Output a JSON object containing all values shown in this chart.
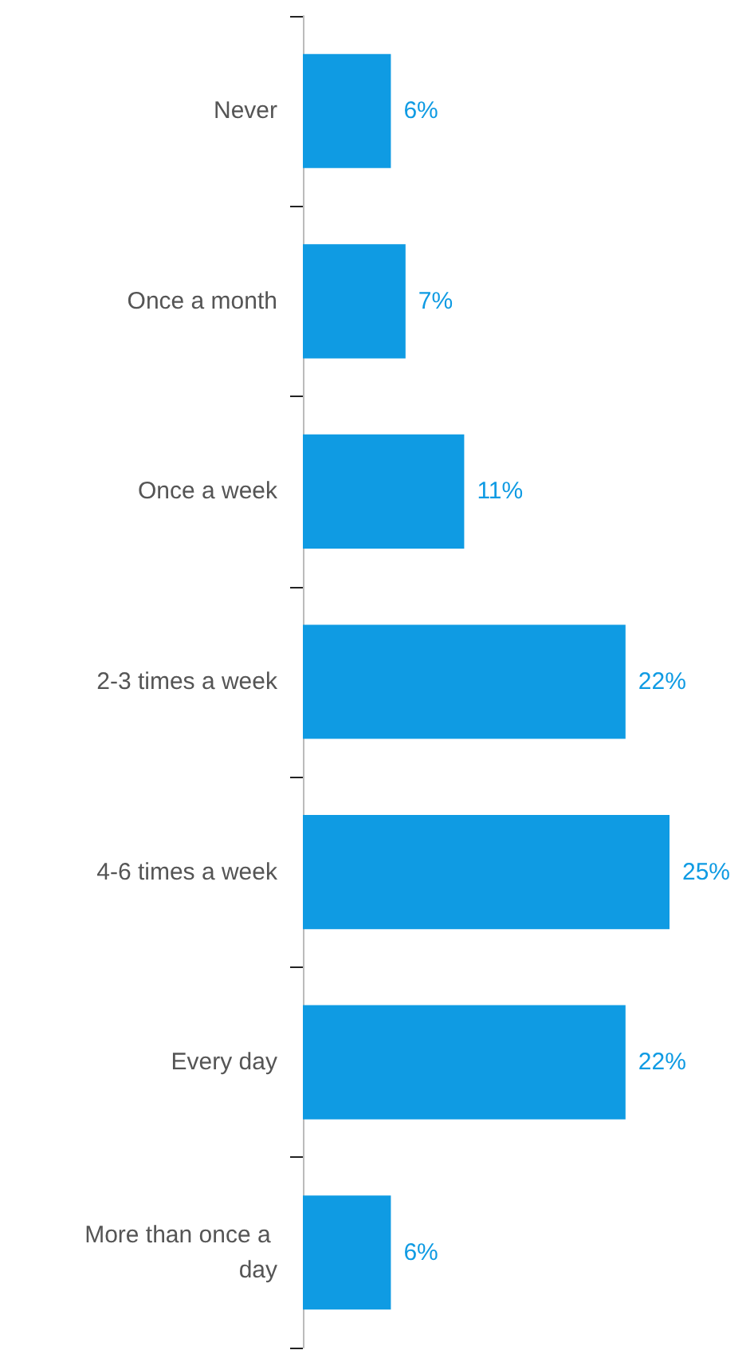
{
  "chart_data": {
    "type": "bar",
    "orientation": "horizontal",
    "tick_labels": "y",
    "categories": [
      "Never",
      "Once a month",
      "Once a week",
      "2-3 times a week",
      "4-6 times a week",
      "Every day",
      "More than once a day"
    ],
    "values": [
      6,
      7,
      11,
      22,
      25,
      22,
      6
    ],
    "value_labels": [
      "6%",
      "7%",
      "11%",
      "22%",
      "25%",
      "22%",
      "6%"
    ],
    "color": "#0f9be3",
    "grid": false
  }
}
